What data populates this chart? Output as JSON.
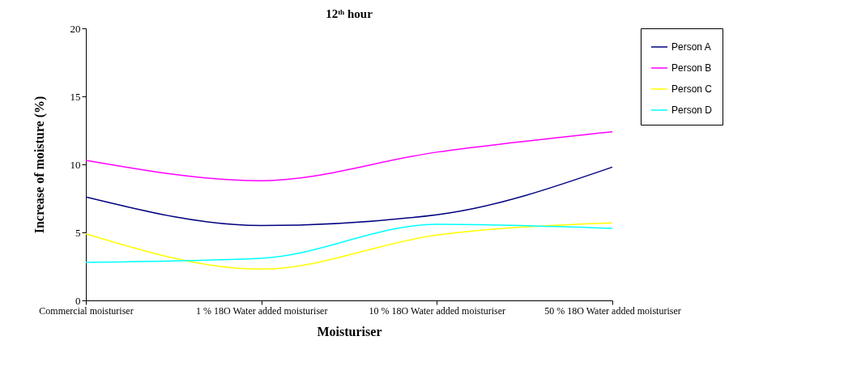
{
  "chart_data": {
    "type": "line",
    "title": "12ᵗʰ hour",
    "xlabel": "Moisturiser",
    "ylabel": "Increase of moisture (%)",
    "categories": [
      "Commercial moisturiser",
      "1 % 18O Water added moisturiser",
      "10 % 18O Water added moisturiser",
      "50 % 18O Water added moisturiser"
    ],
    "series": [
      {
        "name": "Person A",
        "color": "#000080",
        "values": [
          7.6,
          5.5,
          6.3,
          9.8
        ]
      },
      {
        "name": "Person B",
        "color": "#ff00ff",
        "values": [
          10.3,
          8.8,
          10.9,
          12.4
        ]
      },
      {
        "name": "Person C",
        "color": "#ffff00",
        "values": [
          4.9,
          2.3,
          4.8,
          5.7
        ]
      },
      {
        "name": "Person D",
        "color": "#00ffff",
        "values": [
          2.8,
          3.1,
          5.6,
          5.3
        ]
      }
    ],
    "ylim": [
      0,
      20
    ],
    "yticks": [
      0,
      5,
      10,
      15,
      20
    ],
    "grid": false,
    "legend": "right",
    "marker": "none",
    "line_style": "solid"
  }
}
